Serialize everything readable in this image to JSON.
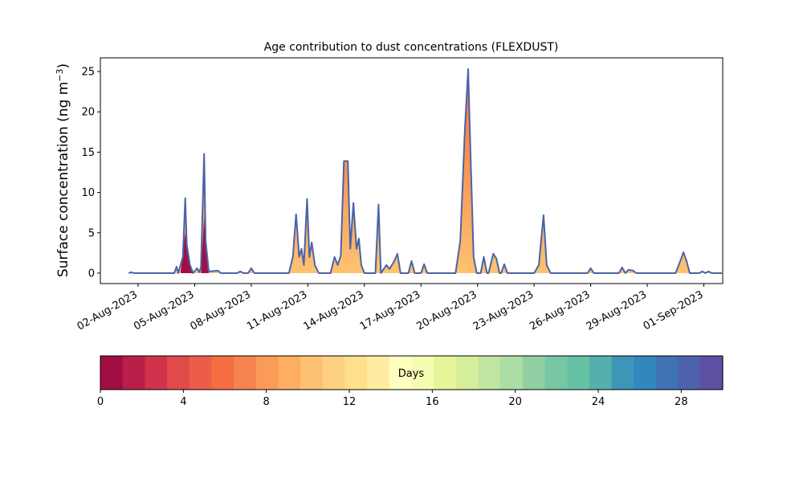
{
  "chart_data": {
    "type": "area",
    "title": "Age contribution to dust concentrations (FLEXDUST)",
    "xlabel": "",
    "ylabel": "Surface concentration (ng m",
    "ylabel_sup": "−3",
    "ylabel_close": ")",
    "xlim": [
      "2023-07-31T00:00",
      "2023-09-02T00:00"
    ],
    "ylim": [
      -1.3,
      26.7
    ],
    "yticks": [
      0,
      5,
      10,
      15,
      20,
      25
    ],
    "xtick_dates": [
      "2023-08-02",
      "2023-08-05",
      "2023-08-08",
      "2023-08-11",
      "2023-08-14",
      "2023-08-17",
      "2023-08-20",
      "2023-08-23",
      "2023-08-26",
      "2023-08-29",
      "2023-09-01"
    ],
    "xtick_labels": [
      "02-Aug-2023",
      "05-Aug-2023",
      "08-Aug-2023",
      "11-Aug-2023",
      "14-Aug-2023",
      "17-Aug-2023",
      "20-Aug-2023",
      "23-Aug-2023",
      "26-Aug-2023",
      "29-Aug-2023",
      "01-Sep-2023"
    ],
    "total_color": "#4a64a8",
    "grid": false,
    "series": [
      {
        "role": "total",
        "points": [
          [
            "2023-08-01T12:00",
            0
          ],
          [
            "2023-08-01T15:00",
            0.1
          ],
          [
            "2023-08-01T19:00",
            0
          ],
          [
            "2023-08-03T22:00",
            0
          ],
          [
            "2023-08-04T01:00",
            0.8
          ],
          [
            "2023-08-04T03:00",
            0
          ],
          [
            "2023-08-04T09:00",
            2.0
          ],
          [
            "2023-08-04T12:00",
            9.3
          ],
          [
            "2023-08-04T14:00",
            3.5
          ],
          [
            "2023-08-04T18:00",
            1.0
          ],
          [
            "2023-08-04T22:00",
            0
          ],
          [
            "2023-08-05T03:00",
            0.6
          ],
          [
            "2023-08-05T06:00",
            0.1
          ],
          [
            "2023-08-05T08:00",
            0.8
          ],
          [
            "2023-08-05T12:00",
            14.8
          ],
          [
            "2023-08-05T14:00",
            4.0
          ],
          [
            "2023-08-05T18:00",
            0.2
          ],
          [
            "2023-08-06T06:00",
            0.3
          ],
          [
            "2023-08-06T09:00",
            0
          ],
          [
            "2023-08-07T06:00",
            0
          ],
          [
            "2023-08-07T10:00",
            0.2
          ],
          [
            "2023-08-07T14:00",
            0
          ],
          [
            "2023-08-07T20:00",
            0
          ],
          [
            "2023-08-08T00:00",
            0.6
          ],
          [
            "2023-08-08T04:00",
            0
          ],
          [
            "2023-08-10T00:00",
            0
          ],
          [
            "2023-08-10T05:00",
            2.0
          ],
          [
            "2023-08-10T09:00",
            7.3
          ],
          [
            "2023-08-10T13:00",
            2.0
          ],
          [
            "2023-08-10T16:00",
            3.0
          ],
          [
            "2023-08-10T19:00",
            1.0
          ],
          [
            "2023-08-10T23:00",
            9.2
          ],
          [
            "2023-08-11T02:00",
            2.0
          ],
          [
            "2023-08-11T05:00",
            3.8
          ],
          [
            "2023-08-11T09:00",
            1.0
          ],
          [
            "2023-08-11T14:00",
            0
          ],
          [
            "2023-08-12T05:00",
            0
          ],
          [
            "2023-08-12T10:00",
            2.0
          ],
          [
            "2023-08-12T14:00",
            1.0
          ],
          [
            "2023-08-12T18:00",
            2.2
          ],
          [
            "2023-08-12T22:00",
            13.9
          ],
          [
            "2023-08-13T03:00",
            13.9
          ],
          [
            "2023-08-13T06:00",
            3.0
          ],
          [
            "2023-08-13T10:00",
            8.7
          ],
          [
            "2023-08-13T14:00",
            3.0
          ],
          [
            "2023-08-13T17:00",
            4.3
          ],
          [
            "2023-08-13T20:00",
            1.0
          ],
          [
            "2023-08-14T00:00",
            0
          ],
          [
            "2023-08-14T14:00",
            0
          ],
          [
            "2023-08-14T18:00",
            8.5
          ],
          [
            "2023-08-14T21:00",
            0
          ],
          [
            "2023-08-15T04:00",
            1.0
          ],
          [
            "2023-08-15T08:00",
            0.5
          ],
          [
            "2023-08-15T14:00",
            1.5
          ],
          [
            "2023-08-15T18:00",
            2.4
          ],
          [
            "2023-08-15T22:00",
            0
          ],
          [
            "2023-08-16T08:00",
            0
          ],
          [
            "2023-08-16T12:00",
            1.5
          ],
          [
            "2023-08-16T16:00",
            0
          ],
          [
            "2023-08-17T00:00",
            0
          ],
          [
            "2023-08-17T04:00",
            1.1
          ],
          [
            "2023-08-17T08:00",
            0
          ],
          [
            "2023-08-18T20:00",
            0
          ],
          [
            "2023-08-19T02:00",
            4.0
          ],
          [
            "2023-08-19T08:00",
            18.0
          ],
          [
            "2023-08-19T12:00",
            25.3
          ],
          [
            "2023-08-19T15:00",
            15.0
          ],
          [
            "2023-08-19T19:00",
            2.0
          ],
          [
            "2023-08-19T23:00",
            0
          ],
          [
            "2023-08-20T04:00",
            0
          ],
          [
            "2023-08-20T08:00",
            2.0
          ],
          [
            "2023-08-20T12:00",
            0
          ],
          [
            "2023-08-20T14:00",
            0
          ],
          [
            "2023-08-20T20:00",
            2.4
          ],
          [
            "2023-08-21T00:00",
            1.8
          ],
          [
            "2023-08-21T04:00",
            0
          ],
          [
            "2023-08-21T06:00",
            0
          ],
          [
            "2023-08-21T10:00",
            1.1
          ],
          [
            "2023-08-21T14:00",
            0
          ],
          [
            "2023-08-23T00:00",
            0
          ],
          [
            "2023-08-23T06:00",
            1.0
          ],
          [
            "2023-08-23T12:00",
            7.2
          ],
          [
            "2023-08-23T16:00",
            1.0
          ],
          [
            "2023-08-23T21:00",
            0
          ],
          [
            "2023-08-25T20:00",
            0
          ],
          [
            "2023-08-26T00:00",
            0.6
          ],
          [
            "2023-08-26T04:00",
            0
          ],
          [
            "2023-08-27T12:00",
            0
          ],
          [
            "2023-08-27T16:00",
            0.7
          ],
          [
            "2023-08-27T20:00",
            0
          ],
          [
            "2023-08-28T00:00",
            0.4
          ],
          [
            "2023-08-28T06:00",
            0.3
          ],
          [
            "2023-08-28T10:00",
            0
          ],
          [
            "2023-08-29T12:00",
            0
          ],
          [
            "2023-08-29T22:00",
            0
          ],
          [
            "2023-08-30T12:00",
            0
          ],
          [
            "2023-08-30T18:00",
            1.5
          ],
          [
            "2023-08-30T22:00",
            2.6
          ],
          [
            "2023-08-31T02:00",
            1.5
          ],
          [
            "2023-08-31T06:00",
            0
          ],
          [
            "2023-08-31T18:00",
            0
          ],
          [
            "2023-08-31T22:00",
            0.2
          ],
          [
            "2023-09-01T02:00",
            0
          ],
          [
            "2023-09-01T06:00",
            0.2
          ],
          [
            "2023-09-01T10:00",
            0
          ],
          [
            "2023-09-01T23:00",
            0
          ]
        ]
      },
      {
        "role": "young",
        "points": [
          [
            "2023-08-04T06:00",
            0
          ],
          [
            "2023-08-04T12:00",
            5.0
          ],
          [
            "2023-08-04T14:00",
            3.0
          ],
          [
            "2023-08-04T18:00",
            1.0
          ],
          [
            "2023-08-04T22:00",
            0
          ],
          [
            "2023-08-05T08:00",
            0
          ],
          [
            "2023-08-05T12:00",
            7.0
          ],
          [
            "2023-08-05T14:00",
            3.0
          ],
          [
            "2023-08-05T18:00",
            0
          ]
        ]
      }
    ],
    "colorbar": {
      "label": "Days",
      "min": 0,
      "max": 30,
      "ticks": [
        0,
        4,
        8,
        12,
        16,
        20,
        24,
        28
      ],
      "colors": [
        "#a10e44",
        "#b91f48",
        "#d0334a",
        "#e14a4b",
        "#eb5d4a",
        "#f46d43",
        "#f6844f",
        "#fa9b58",
        "#fdae61",
        "#fdc171",
        "#fed182",
        "#fee08b",
        "#feeda0",
        "#ffffbf",
        "#f6fbb2",
        "#e6f598",
        "#d5ee9b",
        "#c0e5a0",
        "#abdda4",
        "#90d0a4",
        "#78c6a4",
        "#66c2a5",
        "#55b0ad",
        "#3d95b8",
        "#3288bd",
        "#3f73b3",
        "#4d62ab",
        "#5e4fa2"
      ]
    }
  }
}
